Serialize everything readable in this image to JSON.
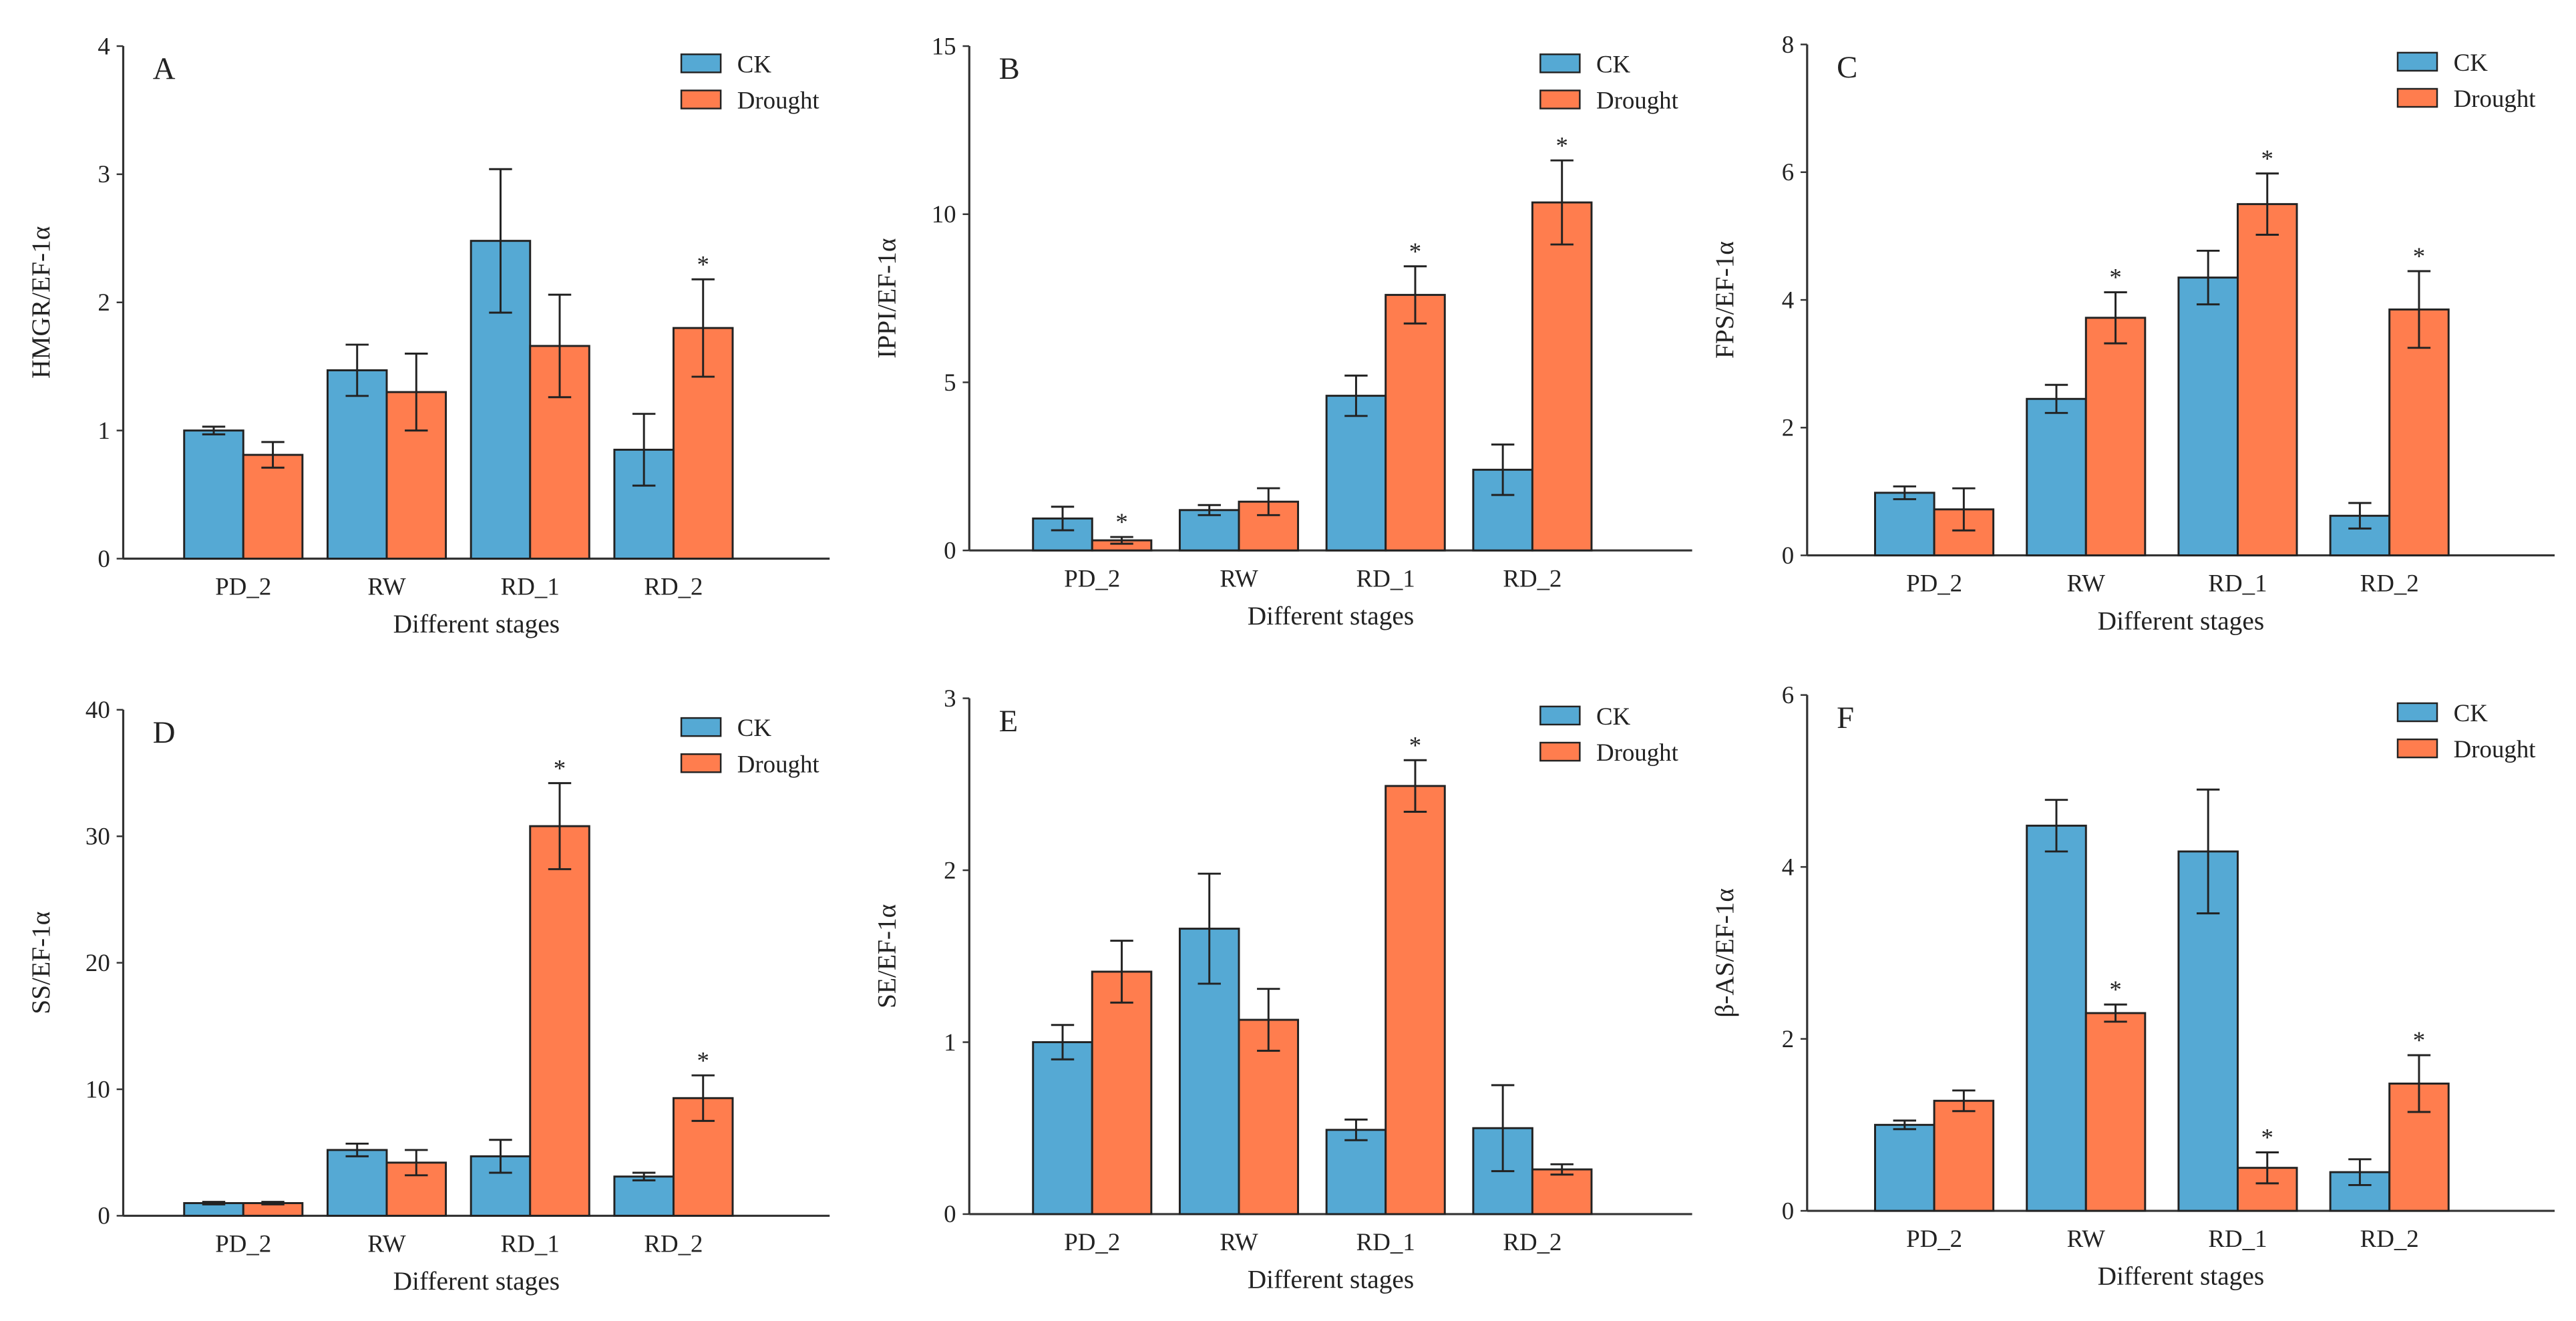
{
  "colors": {
    "CK": "#55A9D4",
    "Drought": "#FF7D4E"
  },
  "chart_data": [
    {
      "type": "bar",
      "panel": "A",
      "ylabel": "HMGR/EF-1α",
      "xlabel": "Different stages",
      "categories": [
        "PD_2",
        "RW",
        "RD_1",
        "RD_2"
      ],
      "ylim": [
        0,
        4
      ],
      "yticks": [
        0,
        1,
        2,
        3,
        4
      ],
      "legend": "top-right",
      "series": [
        {
          "name": "CK",
          "values": [
            1.0,
            1.47,
            2.48,
            0.85
          ],
          "errors": [
            0.03,
            0.2,
            0.56,
            0.28
          ],
          "sig": [
            false,
            false,
            false,
            false
          ]
        },
        {
          "name": "Drought",
          "values": [
            0.81,
            1.3,
            1.66,
            1.8
          ],
          "errors": [
            0.1,
            0.3,
            0.4,
            0.38
          ],
          "sig": [
            false,
            false,
            false,
            true
          ]
        }
      ]
    },
    {
      "type": "bar",
      "panel": "B",
      "ylabel": "IPPI/EF-1α",
      "xlabel": "Different stages",
      "categories": [
        "PD_2",
        "RW",
        "RD_1",
        "RD_2"
      ],
      "ylim": [
        0,
        15
      ],
      "yticks": [
        0,
        5,
        10,
        15
      ],
      "legend": "top-right",
      "series": [
        {
          "name": "CK",
          "values": [
            0.95,
            1.2,
            4.6,
            2.4
          ],
          "errors": [
            0.35,
            0.15,
            0.6,
            0.75
          ],
          "sig": [
            false,
            false,
            false,
            false
          ]
        },
        {
          "name": "Drought",
          "values": [
            0.3,
            1.45,
            7.6,
            10.35
          ],
          "errors": [
            0.1,
            0.4,
            0.85,
            1.25
          ],
          "sig": [
            true,
            false,
            true,
            true
          ]
        }
      ]
    },
    {
      "type": "bar",
      "panel": "C",
      "ylabel": "FPS/EF-1α",
      "xlabel": "Different stages",
      "categories": [
        "PD_2",
        "RW",
        "RD_1",
        "RD_2"
      ],
      "ylim": [
        0,
        8
      ],
      "yticks": [
        0,
        2,
        4,
        6,
        8
      ],
      "legend": "top-right",
      "series": [
        {
          "name": "CK",
          "values": [
            0.98,
            2.45,
            4.35,
            0.62
          ],
          "errors": [
            0.1,
            0.22,
            0.42,
            0.2
          ],
          "sig": [
            false,
            false,
            false,
            false
          ]
        },
        {
          "name": "Drought",
          "values": [
            0.72,
            3.72,
            5.5,
            3.85
          ],
          "errors": [
            0.33,
            0.4,
            0.48,
            0.6
          ],
          "sig": [
            false,
            true,
            true,
            true
          ]
        }
      ]
    },
    {
      "type": "bar",
      "panel": "D",
      "ylabel": "SS/EF-1α",
      "xlabel": "Different stages",
      "categories": [
        "PD_2",
        "RW",
        "RD_1",
        "RD_2"
      ],
      "ylim": [
        0,
        40
      ],
      "yticks": [
        0,
        10,
        20,
        30,
        40
      ],
      "legend": "top-right",
      "series": [
        {
          "name": "CK",
          "values": [
            1.0,
            5.2,
            4.7,
            3.1
          ],
          "errors": [
            0.1,
            0.5,
            1.3,
            0.3
          ],
          "sig": [
            false,
            false,
            false,
            false
          ]
        },
        {
          "name": "Drought",
          "values": [
            1.0,
            4.2,
            30.8,
            9.3
          ],
          "errors": [
            0.1,
            1.0,
            3.4,
            1.8
          ],
          "sig": [
            false,
            false,
            true,
            true
          ]
        }
      ]
    },
    {
      "type": "bar",
      "panel": "E",
      "ylabel": "SE/EF-1α",
      "xlabel": "Different stages",
      "categories": [
        "PD_2",
        "RW",
        "RD_1",
        "RD_2"
      ],
      "ylim": [
        0,
        3
      ],
      "yticks": [
        0,
        1,
        2,
        3
      ],
      "legend": "top-right",
      "series": [
        {
          "name": "CK",
          "values": [
            1.0,
            1.66,
            0.49,
            0.5
          ],
          "errors": [
            0.1,
            0.32,
            0.06,
            0.25
          ],
          "sig": [
            false,
            false,
            false,
            false
          ]
        },
        {
          "name": "Drought",
          "values": [
            1.41,
            1.13,
            2.49,
            0.26
          ],
          "errors": [
            0.18,
            0.18,
            0.15,
            0.03
          ],
          "sig": [
            false,
            false,
            true,
            false
          ]
        }
      ]
    },
    {
      "type": "bar",
      "panel": "F",
      "ylabel": "β-AS/EF-1α",
      "xlabel": "Different stages",
      "categories": [
        "PD_2",
        "RW",
        "RD_1",
        "RD_2"
      ],
      "ylim": [
        0,
        6
      ],
      "yticks": [
        0,
        2,
        4,
        6
      ],
      "legend": "top-right",
      "series": [
        {
          "name": "CK",
          "values": [
            1.0,
            4.48,
            4.18,
            0.45
          ],
          "errors": [
            0.05,
            0.3,
            0.72,
            0.15
          ],
          "sig": [
            false,
            false,
            false,
            false
          ]
        },
        {
          "name": "Drought",
          "values": [
            1.28,
            2.3,
            0.5,
            1.48
          ],
          "errors": [
            0.12,
            0.1,
            0.18,
            0.33
          ],
          "sig": [
            false,
            true,
            true,
            true
          ]
        }
      ]
    }
  ],
  "sig_mark": "*"
}
